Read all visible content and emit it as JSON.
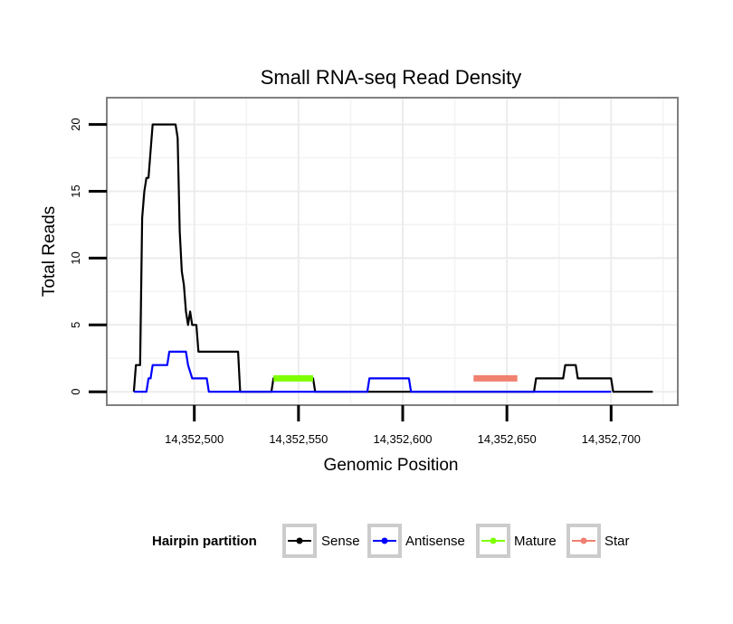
{
  "chart_data": {
    "type": "line",
    "title": "Small RNA-seq Read Density",
    "xlabel": "Genomic Position",
    "ylabel": "Total Reads",
    "xlim": [
      14352458,
      14352732
    ],
    "ylim": [
      -1,
      22
    ],
    "x_ticks": [
      14352500,
      14352550,
      14352600,
      14352650,
      14352700
    ],
    "x_tick_labels": [
      "14,352,500",
      "14,352,550",
      "14,352,600",
      "14,352,650",
      "14,352,700"
    ],
    "y_ticks": [
      0,
      5,
      10,
      15,
      20
    ],
    "y_tick_labels": [
      "0",
      "5",
      "10",
      "15",
      "20"
    ],
    "grid": true,
    "legend": {
      "title": "Hairpin partition",
      "position": "bottom",
      "entries": [
        "Sense",
        "Antisense",
        "Mature",
        "Star"
      ]
    },
    "series": [
      {
        "name": "Sense",
        "color": "#000000",
        "width": 2.2,
        "points": [
          [
            14352471,
            0
          ],
          [
            14352472,
            2
          ],
          [
            14352474,
            2
          ],
          [
            14352475,
            13
          ],
          [
            14352476,
            15
          ],
          [
            14352477,
            16
          ],
          [
            14352478,
            16
          ],
          [
            14352479,
            18
          ],
          [
            14352480,
            20
          ],
          [
            14352491,
            20
          ],
          [
            14352492,
            19
          ],
          [
            14352493,
            12
          ],
          [
            14352494,
            9
          ],
          [
            14352495,
            8
          ],
          [
            14352496,
            6
          ],
          [
            14352497,
            5
          ],
          [
            14352498,
            6
          ],
          [
            14352499,
            5
          ],
          [
            14352500,
            5
          ],
          [
            14352501,
            5
          ],
          [
            14352502,
            3
          ],
          [
            14352521,
            3
          ],
          [
            14352522,
            0
          ],
          [
            14352537,
            0
          ],
          [
            14352538,
            1
          ],
          [
            14352557,
            1
          ],
          [
            14352558,
            0
          ],
          [
            14352663,
            0
          ],
          [
            14352664,
            1
          ],
          [
            14352677,
            1
          ],
          [
            14352678,
            2
          ],
          [
            14352683,
            2
          ],
          [
            14352684,
            1
          ],
          [
            14352700,
            1
          ],
          [
            14352701,
            0
          ],
          [
            14352720,
            0
          ]
        ]
      },
      {
        "name": "Antisense",
        "color": "#0000ff",
        "width": 2.2,
        "points": [
          [
            14352471,
            0
          ],
          [
            14352477,
            0
          ],
          [
            14352478,
            1
          ],
          [
            14352479,
            1
          ],
          [
            14352480,
            2
          ],
          [
            14352487,
            2
          ],
          [
            14352488,
            3
          ],
          [
            14352496,
            3
          ],
          [
            14352497,
            2
          ],
          [
            14352499,
            1
          ],
          [
            14352506,
            1
          ],
          [
            14352507,
            0
          ],
          [
            14352583,
            0
          ],
          [
            14352584,
            1
          ],
          [
            14352603,
            1
          ],
          [
            14352604,
            0
          ],
          [
            14352700,
            0
          ]
        ]
      },
      {
        "name": "Mature",
        "color": "#7fff00",
        "width": 7,
        "points": [
          [
            14352538,
            1
          ],
          [
            14352557,
            1
          ]
        ]
      },
      {
        "name": "Star",
        "color": "#f08070",
        "width": 7,
        "points": [
          [
            14352634,
            1
          ],
          [
            14352655,
            1
          ]
        ]
      }
    ]
  }
}
